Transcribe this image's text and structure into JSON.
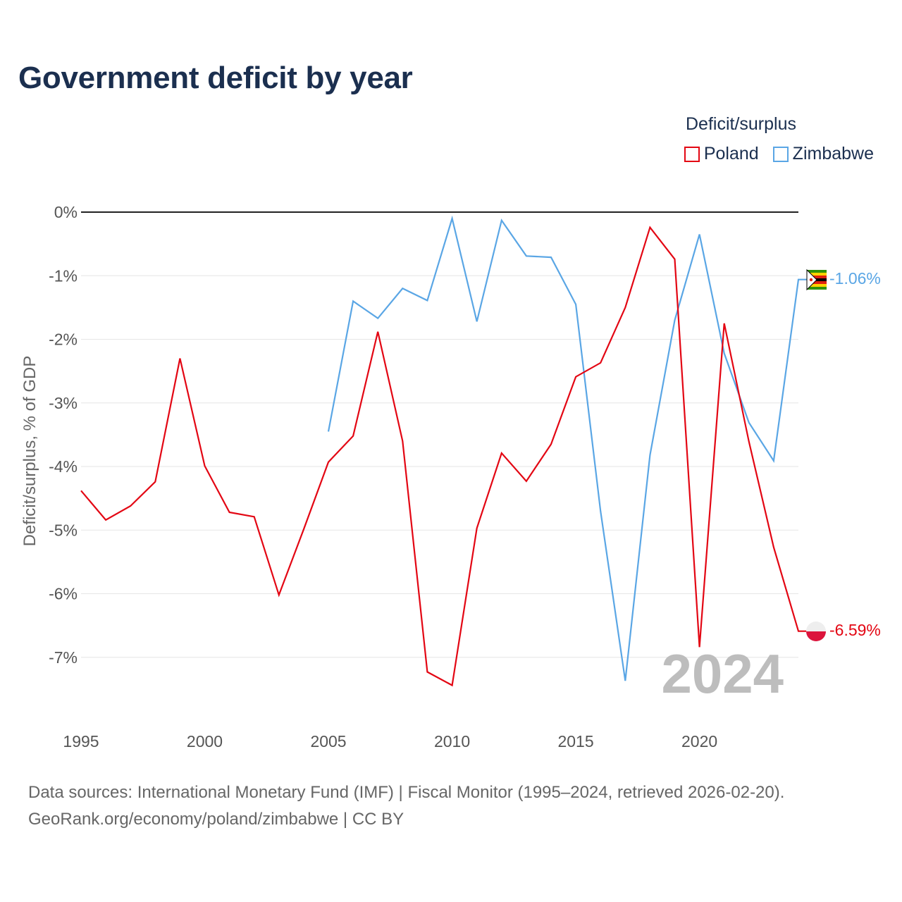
{
  "page": {
    "title": "Government deficit by year",
    "footer_line1": "Data sources: International Monetary Fund (IMF) | Fiscal Monitor (1995–2024, retrieved 2026-02-20).",
    "footer_line2": "GeoRank.org/economy/poland/zimbabwe | CC BY"
  },
  "legend": {
    "title": "Deficit/surplus",
    "items": [
      {
        "name": "Poland",
        "color": "#e30613"
      },
      {
        "name": "Zimbabwe",
        "color": "#5aa6e5"
      }
    ]
  },
  "chart_data": {
    "type": "line",
    "title": "Government deficit by year",
    "xlabel": "",
    "ylabel": "Deficit/surplus, % of GDP",
    "xlim": [
      1995,
      2024
    ],
    "ylim": [
      -8,
      0
    ],
    "x_ticks": [
      1995,
      2000,
      2005,
      2010,
      2015,
      2020
    ],
    "y_ticks": [
      0,
      -1,
      -2,
      -3,
      -4,
      -5,
      -6,
      -7
    ],
    "y_tick_labels": [
      "0%",
      "-1%",
      "-2%",
      "-3%",
      "-4%",
      "-5%",
      "-6%",
      "-7%"
    ],
    "year_watermark": "2024",
    "series": [
      {
        "name": "Poland",
        "color": "#e30613",
        "end_label": "-6.59%",
        "x": [
          1995,
          1996,
          1997,
          1998,
          1999,
          2000,
          2001,
          2002,
          2003,
          2004,
          2005,
          2006,
          2007,
          2008,
          2009,
          2010,
          2011,
          2012,
          2013,
          2014,
          2015,
          2016,
          2017,
          2018,
          2019,
          2020,
          2021,
          2022,
          2023,
          2024
        ],
        "values": [
          -4.38,
          -4.84,
          -4.62,
          -4.24,
          -2.3,
          -3.99,
          -4.72,
          -4.79,
          -6.02,
          -4.99,
          -3.93,
          -3.52,
          -1.88,
          -3.6,
          -7.23,
          -7.44,
          -4.97,
          -3.79,
          -4.23,
          -3.65,
          -2.59,
          -2.37,
          -1.5,
          -0.24,
          -0.74,
          -6.84,
          -1.75,
          -3.61,
          -5.27,
          -6.59
        ]
      },
      {
        "name": "Zimbabwe",
        "color": "#5aa6e5",
        "end_label": "-1.06%",
        "x": [
          2005,
          2006,
          2007,
          2008,
          2009,
          2010,
          2011,
          2012,
          2013,
          2014,
          2015,
          2016,
          2017,
          2018,
          2019,
          2020,
          2021,
          2022,
          2023,
          2024
        ],
        "values": [
          -3.45,
          -1.4,
          -1.67,
          -1.2,
          -1.39,
          -0.1,
          -1.72,
          -0.13,
          -0.69,
          -0.71,
          -1.45,
          -4.7,
          -7.37,
          -3.82,
          -1.7,
          -0.35,
          -2.22,
          -3.31,
          -3.91,
          -1.06
        ]
      }
    ]
  }
}
